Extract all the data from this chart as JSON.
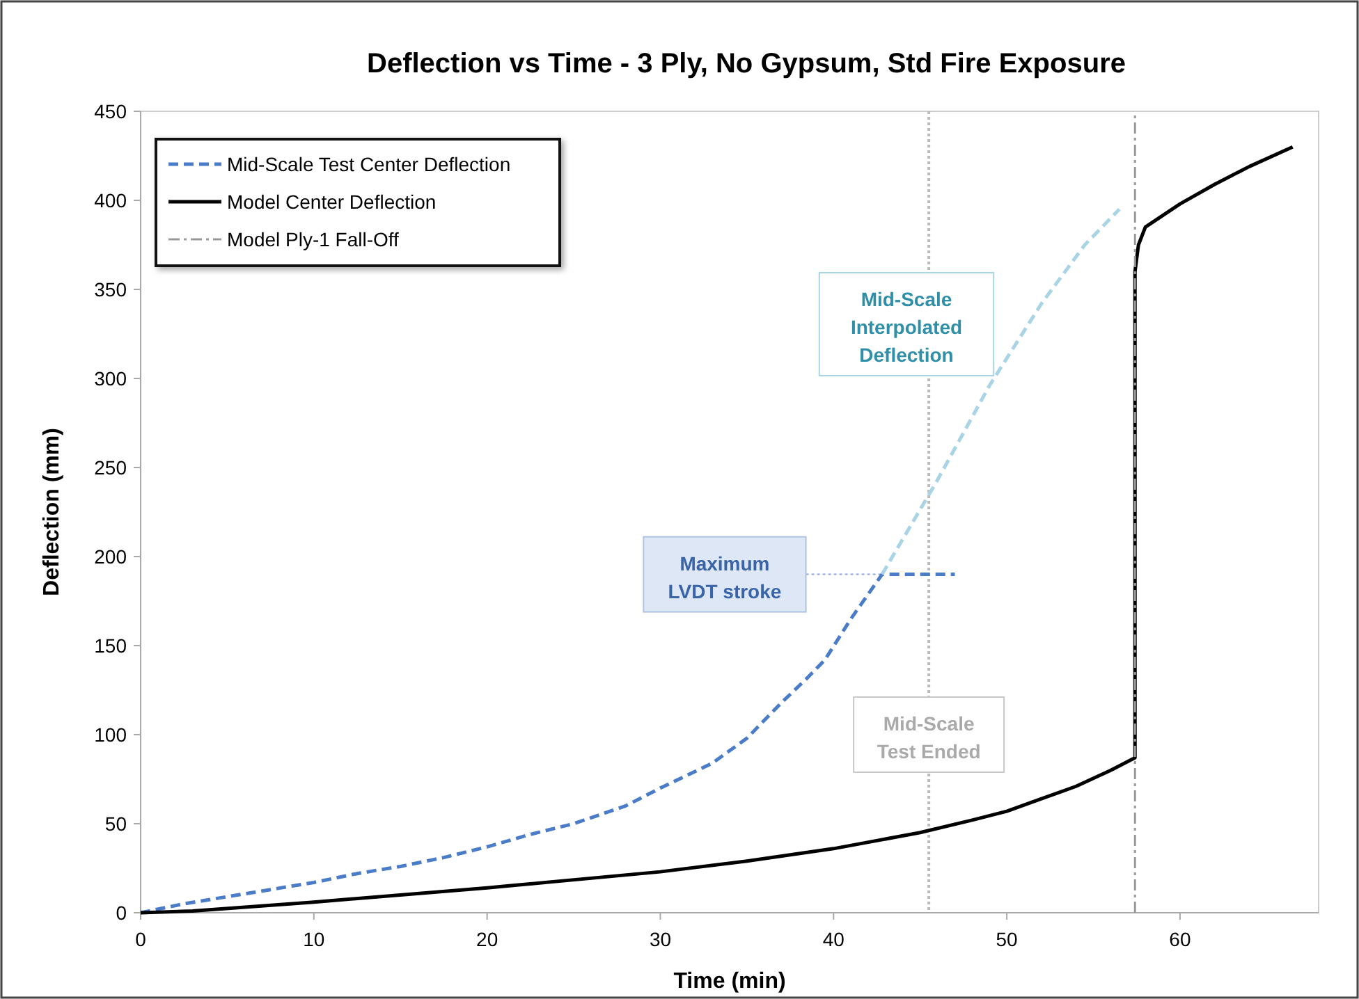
{
  "chart_data": {
    "type": "line",
    "title": "Deflection vs Time - 3 Ply, No Gypsum, Std Fire Exposure",
    "xlabel": "Time (min)",
    "ylabel": "Deflection (mm)",
    "xlim": [
      0,
      68
    ],
    "xticks": [
      0,
      10,
      20,
      30,
      40,
      50,
      60
    ],
    "ylim": [
      0,
      450
    ],
    "yticks": [
      0,
      50,
      100,
      150,
      200,
      250,
      300,
      350,
      400,
      450
    ],
    "grid": false,
    "legend": "top left",
    "marker": "none",
    "series": [
      {
        "name": "Mid-Scale Test Center Deflection",
        "color": "#4a7cc8",
        "line_style": "dashed",
        "x": [
          0,
          2.5,
          5,
          7.5,
          10,
          12.5,
          15,
          17.5,
          20,
          22.5,
          25,
          28,
          30,
          33,
          35,
          37,
          38.5,
          39.5,
          41,
          42.8,
          47
        ],
        "values": [
          0,
          5,
          9,
          13,
          17,
          22,
          26,
          31,
          37,
          44,
          50,
          60,
          70,
          84,
          98,
          118,
          132,
          142,
          165,
          190,
          190
        ]
      },
      {
        "color": "#a9d4e6",
        "line_style": "dashed",
        "x": [
          42.8,
          46,
          49,
          52,
          54.5,
          56.5
        ],
        "values": [
          190,
          243,
          296,
          342,
          375,
          395
        ]
      },
      {
        "name": "Model Center Deflection",
        "color": "#000000",
        "line_style": "solid",
        "x": [
          0,
          3,
          10,
          20,
          30,
          35,
          40,
          45,
          48,
          50,
          52,
          54,
          56,
          57.4,
          57.4,
          57.6,
          58,
          60,
          62,
          64,
          66.5
        ],
        "values": [
          0,
          1,
          6,
          14,
          23,
          29,
          36,
          45,
          52,
          57,
          64,
          71,
          80,
          87,
          360,
          375,
          385,
          398,
          409,
          419,
          430
        ]
      },
      {
        "name": "Model Ply-1 Fall-Off",
        "color": "#999999",
        "line_style": "dashdot",
        "x": [
          57.4,
          57.4
        ],
        "values": [
          0,
          450
        ]
      }
    ],
    "ref_lines": [
      {
        "axis": "x",
        "value": 45.5,
        "color": "#bbbbbb",
        "line_style": "dotted"
      }
    ],
    "annotations": [
      "Mid-Scale Interpolated Deflection",
      {
        "text": "Maximum LVDT stroke",
        "x": 42.8,
        "y": 190
      },
      {
        "text": "Mid-Scale Test Ended",
        "x": 45.5,
        "y": 100
      }
    ]
  }
}
